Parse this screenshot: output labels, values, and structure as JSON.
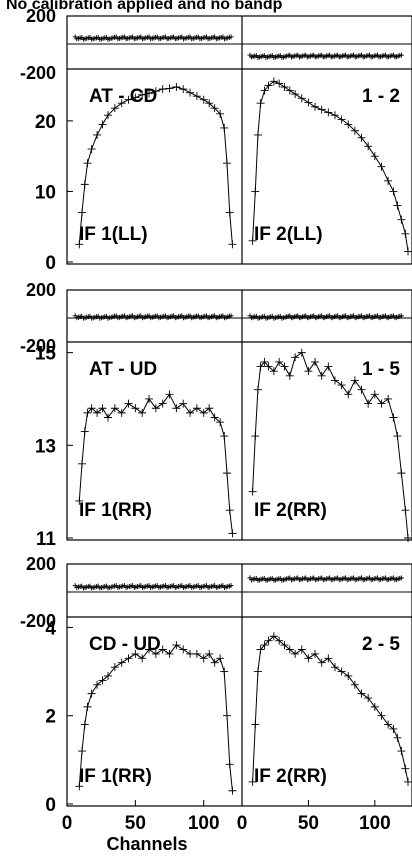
{
  "title": "No calibration applied and no bandp",
  "x_axis": {
    "label": "Channels",
    "ticks": [
      {
        "label": "0",
        "value": 0
      },
      {
        "label": "50",
        "value": 50
      },
      {
        "label": "100",
        "value": 100
      }
    ],
    "right_ticks": [
      {
        "label": "0",
        "value": 0
      },
      {
        "label": "50",
        "value": 50
      },
      {
        "label": "100",
        "value": 100
      }
    ]
  },
  "phase_ticks": {
    "top": "200",
    "bottom": "-200"
  },
  "chart_data": [
    {
      "type": "line",
      "baseline": "AT - CD",
      "ylim": [
        0,
        26.5
      ],
      "y_ticks": [
        "0",
        "10",
        "20"
      ],
      "y_tick_values": [
        0,
        10,
        20
      ],
      "xlim": [
        0,
        128
      ],
      "panels": [
        {
          "corner_label": "AT - CD",
          "if_label": "IF 1(LL)",
          "phase_deg": 45,
          "amplitude": {
            "x": [
              9,
              11,
              13,
              15,
              18,
              22,
              26,
              30,
              35,
              40,
              45,
              50,
              55,
              60,
              65,
              70,
              75,
              80,
              85,
              90,
              95,
              100,
              104,
              108,
              112,
              115,
              117,
              119,
              121
            ],
            "y": [
              2.5,
              7,
              11,
              14,
              16,
              18,
              19.5,
              20.8,
              21.8,
              22.5,
              23,
              23.3,
              23.7,
              23.9,
              24.2,
              24.5,
              24.6,
              24.8,
              24.5,
              24,
              23.5,
              23,
              22.5,
              21.8,
              21,
              19,
              14,
              7,
              2.5
            ]
          }
        },
        {
          "corner_label": "1 - 2",
          "if_label": "IF 2(LL)",
          "phase_deg": -85,
          "amplitude": {
            "x": [
              8,
              10,
              12,
              14,
              17,
              20,
              24,
              28,
              32,
              36,
              40,
              45,
              50,
              55,
              60,
              65,
              70,
              75,
              80,
              85,
              90,
              95,
              100,
              105,
              110,
              114,
              117,
              120,
              123,
              125
            ],
            "y": [
              3,
              10,
              18,
              22.5,
              24.3,
              25,
              25.6,
              25.3,
              24.8,
              24.3,
              23.8,
              23.2,
              22.6,
              22,
              21.6,
              21.2,
              20.8,
              20.2,
              19.5,
              18.6,
              17.6,
              16.4,
              15,
              13.5,
              11.5,
              10,
              8,
              6,
              4,
              1.5
            ]
          }
        }
      ]
    },
    {
      "type": "line",
      "baseline": "AT - UD",
      "ylim": [
        11,
        15.1
      ],
      "y_ticks": [
        "11",
        "13",
        "15"
      ],
      "y_tick_values": [
        11,
        13,
        15
      ],
      "xlim": [
        0,
        128
      ],
      "panels": [
        {
          "corner_label": "AT - UD",
          "if_label": "IF 1(RR)",
          "phase_deg": 10,
          "amplitude": {
            "x": [
              9,
              11,
              13,
              15,
              18,
              22,
              26,
              30,
              35,
              40,
              45,
              50,
              55,
              60,
              65,
              70,
              75,
              80,
              85,
              90,
              95,
              100,
              104,
              108,
              112,
              115,
              117,
              119,
              121
            ],
            "y": [
              11.8,
              12.6,
              13.3,
              13.7,
              13.8,
              13.7,
              13.8,
              13.6,
              13.8,
              13.7,
              13.9,
              13.8,
              13.7,
              14.0,
              13.8,
              13.9,
              14.1,
              13.8,
              13.9,
              13.7,
              13.8,
              13.7,
              13.8,
              13.6,
              13.5,
              13.2,
              12.4,
              11.6,
              11.1
            ]
          }
        },
        {
          "corner_label": "1 - 5",
          "if_label": "IF 2(RR)",
          "phase_deg": 10,
          "amplitude": {
            "x": [
              8,
              10,
              12,
              14,
              17,
              20,
              24,
              28,
              32,
              36,
              40,
              45,
              50,
              55,
              60,
              65,
              70,
              75,
              80,
              85,
              90,
              95,
              100,
              105,
              110,
              114,
              117,
              120,
              123,
              125
            ],
            "y": [
              12.0,
              13.2,
              14.2,
              14.7,
              14.8,
              14.7,
              14.6,
              14.8,
              14.7,
              14.5,
              14.9,
              15.0,
              14.6,
              14.8,
              14.5,
              14.7,
              14.4,
              14.3,
              14.1,
              14.4,
              14.2,
              13.9,
              14.1,
              13.9,
              14.0,
              13.6,
              13.2,
              12.4,
              11.6,
              11.0
            ]
          }
        }
      ]
    },
    {
      "type": "line",
      "baseline": "CD - UD",
      "ylim": [
        0,
        4.1
      ],
      "y_ticks": [
        "0",
        "2",
        "4"
      ],
      "y_tick_values": [
        0,
        2,
        4
      ],
      "xlim": [
        0,
        128
      ],
      "panels": [
        {
          "corner_label": "CD - UD",
          "if_label": "IF 1(RR)",
          "phase_deg": 40,
          "amplitude": {
            "x": [
              9,
              11,
              13,
              15,
              18,
              22,
              26,
              30,
              35,
              40,
              45,
              50,
              55,
              60,
              65,
              70,
              75,
              80,
              85,
              90,
              95,
              100,
              104,
              108,
              112,
              115,
              117,
              119,
              121
            ],
            "y": [
              0.4,
              1.2,
              1.8,
              2.2,
              2.5,
              2.7,
              2.8,
              2.9,
              3.1,
              3.2,
              3.3,
              3.4,
              3.3,
              3.5,
              3.4,
              3.5,
              3.4,
              3.6,
              3.5,
              3.4,
              3.4,
              3.3,
              3.4,
              3.2,
              3.3,
              3.0,
              2.0,
              0.9,
              0.3
            ]
          }
        },
        {
          "corner_label": "2 - 5",
          "if_label": "IF 2(RR)",
          "phase_deg": 95,
          "amplitude": {
            "x": [
              8,
              10,
              12,
              14,
              17,
              20,
              24,
              28,
              32,
              36,
              40,
              45,
              50,
              55,
              60,
              65,
              70,
              75,
              80,
              85,
              90,
              95,
              100,
              105,
              110,
              114,
              117,
              120,
              123,
              125
            ],
            "y": [
              0.5,
              1.8,
              3.0,
              3.5,
              3.6,
              3.7,
              3.8,
              3.7,
              3.6,
              3.5,
              3.4,
              3.5,
              3.3,
              3.4,
              3.2,
              3.3,
              3.1,
              3.0,
              2.9,
              2.7,
              2.5,
              2.4,
              2.2,
              2.0,
              1.8,
              1.7,
              1.5,
              1.2,
              0.8,
              0.5
            ]
          }
        }
      ]
    }
  ]
}
